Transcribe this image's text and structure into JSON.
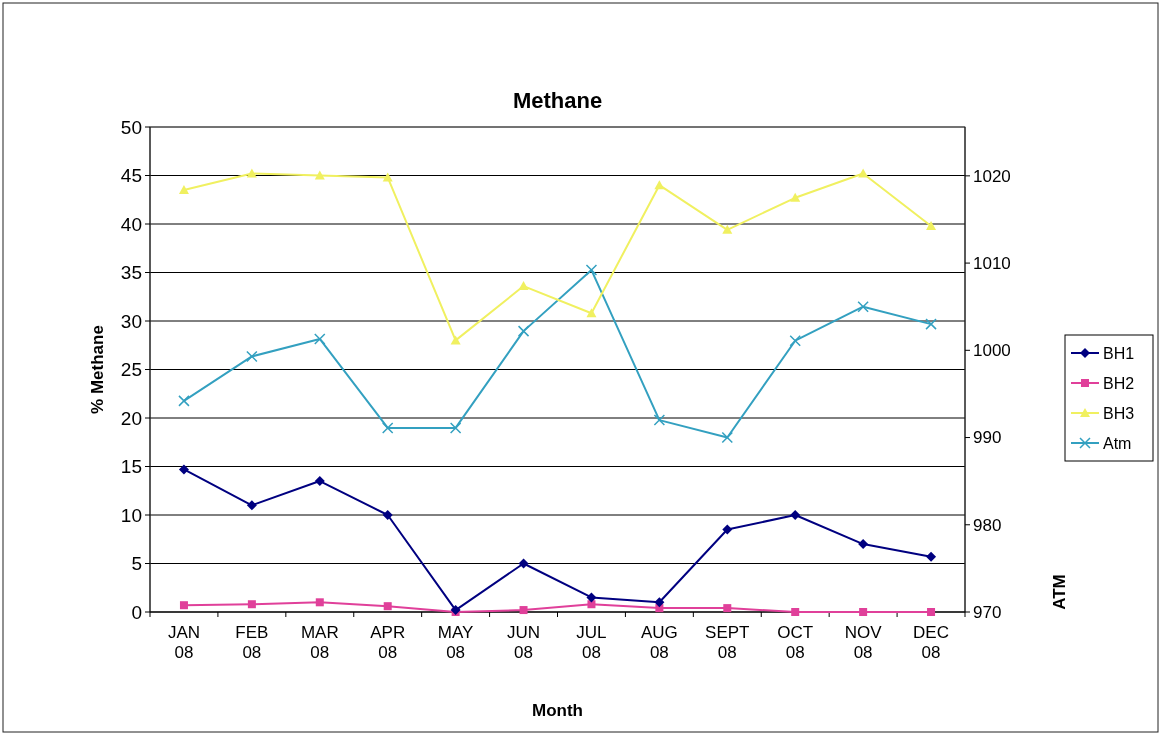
{
  "chart_data": {
    "type": "line",
    "title": "Methane",
    "xlabel": "Month",
    "ylabel": "% Methane",
    "y2label": "ATM",
    "categories": [
      "JAN 08",
      "FEB 08",
      "MAR 08",
      "APR 08",
      "MAY 08",
      "JUN 08",
      "JUL 08",
      "AUG 08",
      "SEPT 08",
      "OCT 08",
      "NOV 08",
      "DEC 08"
    ],
    "ylim": [
      0,
      50
    ],
    "yticks": [
      0,
      5,
      10,
      15,
      20,
      25,
      30,
      35,
      40,
      45,
      50
    ],
    "y2lim": [
      970,
      1025.6
    ],
    "y2ticks": [
      970,
      980,
      990,
      1000,
      1010,
      1020
    ],
    "grid": "y",
    "legend": "right",
    "series": [
      {
        "name": "BH1",
        "color": "#000080",
        "marker": "diamond",
        "values": [
          14.7,
          11,
          13.5,
          10,
          0.2,
          5,
          1.5,
          1,
          8.5,
          10,
          7,
          5.7
        ]
      },
      {
        "name": "BH2",
        "color": "#e0409a",
        "marker": "square",
        "values": [
          0.7,
          0.8,
          1,
          0.6,
          0,
          0.2,
          0.8,
          0.4,
          0.4,
          0,
          0,
          0
        ]
      },
      {
        "name": "BH3",
        "color": "#f0f060",
        "marker": "triangle",
        "values": [
          43.5,
          45.2,
          45,
          44.8,
          28,
          33.6,
          30.8,
          44,
          39.4,
          42.7,
          45.2,
          39.8
        ]
      },
      {
        "name": "Atm",
        "color": "#33a0c0",
        "marker": "cross",
        "axis": "y2",
        "values": [
          994.2,
          999.3,
          1001.3,
          991.1,
          991.1,
          1002.2,
          1009.2,
          992,
          990,
          1001.1,
          1005,
          1003
        ]
      }
    ]
  }
}
